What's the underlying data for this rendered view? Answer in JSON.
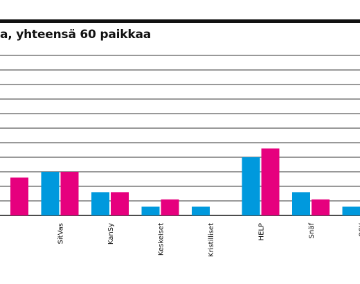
{
  "chart_data": {
    "type": "bar",
    "title": "a, yhteensä 60 paikkaa",
    "categories": [
      "",
      "SitVas",
      "KanSy",
      "Keskeiset",
      "Kristilliset",
      "HELP",
      "Snäf",
      "OSY"
    ],
    "series": [
      {
        "color": "#0099dd",
        "values": [
          null,
          3,
          1.6,
          0.6,
          0.6,
          4,
          1.6,
          0.6
        ]
      },
      {
        "color": "#e6007e",
        "values": [
          2.6,
          3,
          1.6,
          1.1,
          0,
          4.6,
          1.1,
          0.6
        ]
      }
    ],
    "ylim": [
      0,
      11
    ],
    "grid": true,
    "legend": "none"
  }
}
